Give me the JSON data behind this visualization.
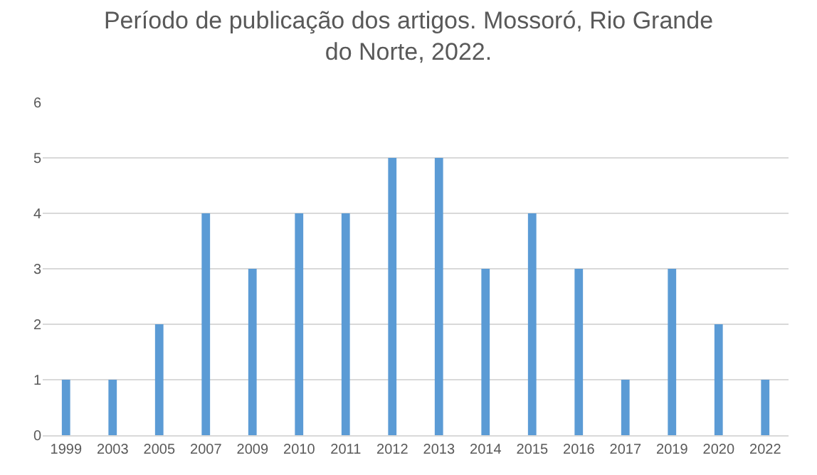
{
  "chart_data": {
    "type": "bar",
    "title": "Período de publicação dos artigos. Mossoró, Rio Grande\ndo Norte, 2022.",
    "categories": [
      "1999",
      "2003",
      "2005",
      "2007",
      "2009",
      "2010",
      "2011",
      "2012",
      "2013",
      "2014",
      "2015",
      "2016",
      "2017",
      "2019",
      "2020",
      "2022"
    ],
    "values": [
      1,
      1,
      2,
      4,
      3,
      4,
      4,
      5,
      5,
      3,
      4,
      3,
      1,
      3,
      2,
      1
    ],
    "color": "#5b9bd5",
    "ylim": [
      0,
      6
    ],
    "yticks": [
      0,
      1,
      2,
      3,
      4,
      5,
      6
    ],
    "grid": "y"
  }
}
